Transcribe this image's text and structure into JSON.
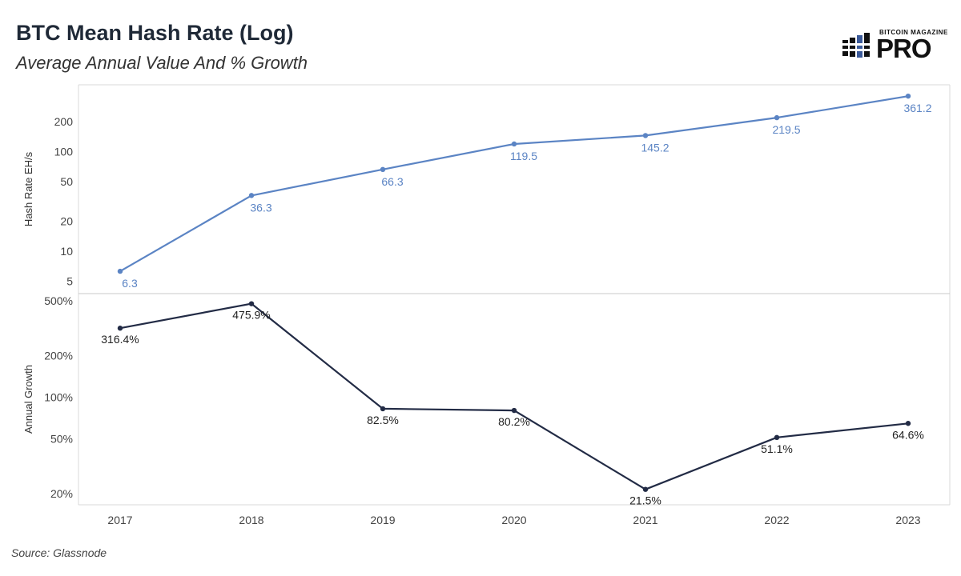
{
  "header": {
    "title": "BTC Mean Hash Rate (Log)",
    "subtitle": "Average Annual Value And % Growth"
  },
  "logo": {
    "top_text": "BITCOIN MAGAZINE",
    "main_text": "PRO"
  },
  "footer": {
    "source": "Source: Glassnode"
  },
  "colors": {
    "hash_line": "#5b84c4",
    "growth_line": "#222b45",
    "grid": "#d9d9d9"
  },
  "chart_data": [
    {
      "type": "line",
      "scale": "log",
      "ylabel": "Hash Rate EH/s",
      "x": [
        "2017",
        "2018",
        "2019",
        "2020",
        "2021",
        "2022",
        "2023"
      ],
      "values": [
        6.3,
        36.3,
        66.3,
        119.5,
        145.2,
        219.5,
        361.2
      ],
      "data_labels": [
        "6.3",
        "36.3",
        "66.3",
        "119.5",
        "145.2",
        "219.5",
        "361.2"
      ],
      "yticks": [
        5,
        10,
        20,
        50,
        100,
        200
      ],
      "ytick_labels": [
        "5",
        "10",
        "20",
        "50",
        "100",
        "200"
      ],
      "ylim": [
        4.2,
        420
      ]
    },
    {
      "type": "line",
      "scale": "log",
      "ylabel": "Annual Growth",
      "x": [
        "2017",
        "2018",
        "2019",
        "2020",
        "2021",
        "2022",
        "2023"
      ],
      "values": [
        316.4,
        475.9,
        82.5,
        80.2,
        21.5,
        51.1,
        64.6
      ],
      "data_labels": [
        "316.4%",
        "475.9%",
        "82.5%",
        "80.2%",
        "21.5%",
        "51.1%",
        "64.6%"
      ],
      "yticks": [
        20,
        50,
        100,
        200,
        500
      ],
      "ytick_labels": [
        "20%",
        "50%",
        "100%",
        "200%",
        "500%"
      ],
      "ylim": [
        18,
        520
      ]
    }
  ]
}
